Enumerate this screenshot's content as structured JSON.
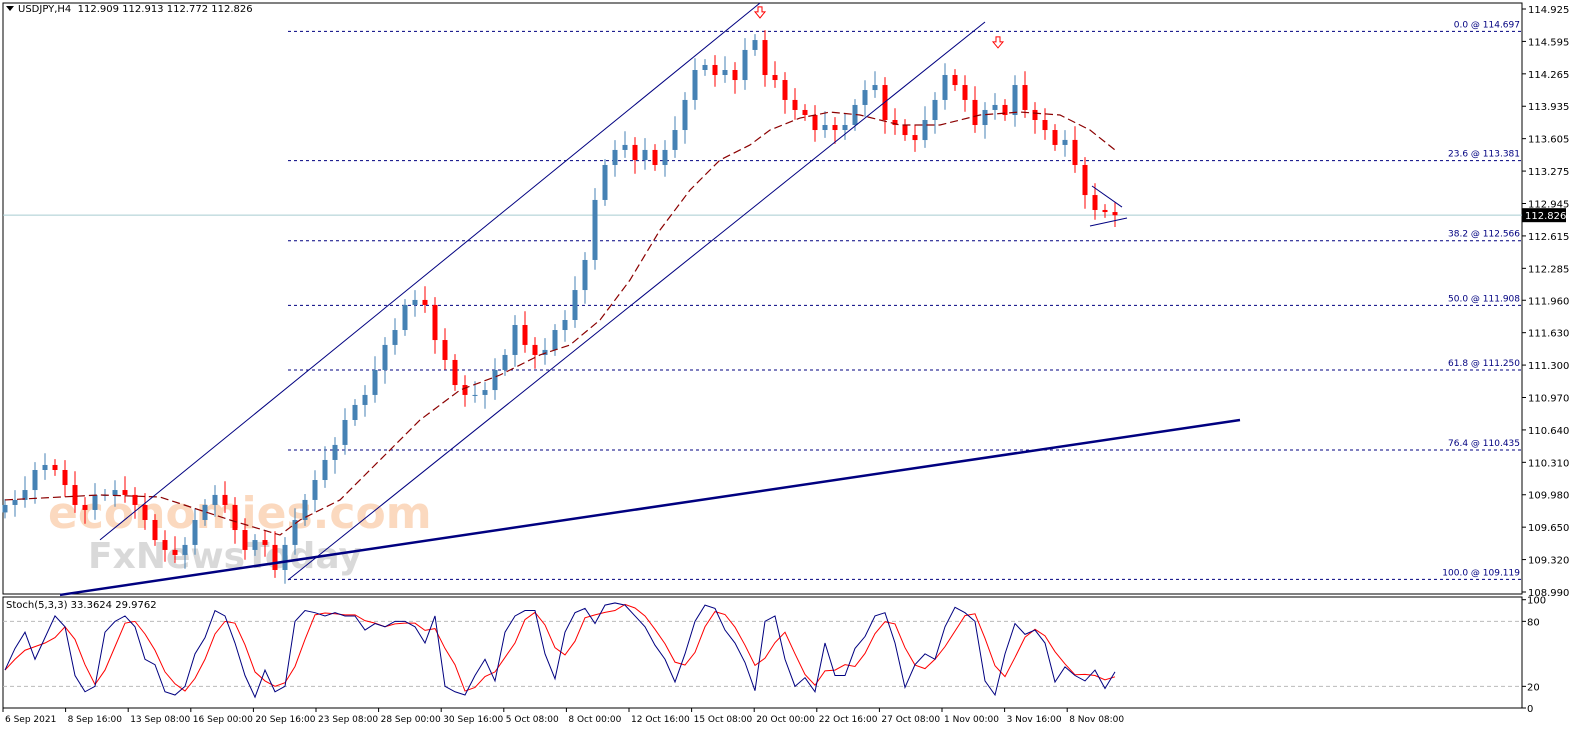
{
  "header": {
    "symbol": "USDJPY,H4",
    "ohlc": "112.909 112.913 112.772 112.826"
  },
  "stoch_header": {
    "name": "Stoch(5,3,3)",
    "k": "33.3624",
    "d": "29.9762"
  },
  "watermark": {
    "line1": "economies.com",
    "line2": "FxNewsToday"
  },
  "colors": {
    "bull": "#4682B4",
    "bear": "#FF0000",
    "ma": "#8B0000",
    "trend": "#000080",
    "fib": "#000080",
    "stoch_k": "#000080",
    "stoch_d": "#FF0000",
    "price_line": "#A8CCD0"
  },
  "chart_data": [
    {
      "type": "candlestick",
      "title": "USDJPY,H4",
      "ylim": [
        108.99,
        114.925
      ],
      "y_ticks": [
        "114.925",
        "114.595",
        "114.265",
        "113.935",
        "113.605",
        "113.275",
        "112.945",
        "112.615",
        "112.285",
        "111.960",
        "111.630",
        "111.300",
        "110.970",
        "110.640",
        "110.310",
        "109.980",
        "109.650",
        "109.320",
        "108.990"
      ],
      "x_ticks": [
        "6 Sep 2021",
        "8 Sep 16:00",
        "13 Sep 08:00",
        "16 Sep 00:00",
        "20 Sep 16:00",
        "23 Sep 08:00",
        "28 Sep 00:00",
        "30 Sep 16:00",
        "5 Oct 08:00",
        "8 Oct 00:00",
        "12 Oct 16:00",
        "15 Oct 08:00",
        "20 Oct 00:00",
        "22 Oct 16:00",
        "27 Oct 08:00",
        "1 Nov 00:00",
        "3 Nov 16:00",
        "8 Nov 08:00"
      ],
      "first_open": 109.8,
      "closes": [
        109.876,
        109.927,
        110.028,
        110.232,
        110.283,
        110.232,
        110.079,
        109.876,
        109.825,
        109.978,
        109.978,
        110.028,
        109.978,
        109.876,
        109.723,
        109.519,
        109.418,
        109.367,
        109.469,
        109.723,
        109.876,
        109.978,
        109.876,
        109.621,
        109.418,
        109.519,
        109.469,
        109.214,
        109.469,
        109.723,
        109.927,
        110.13,
        110.334,
        110.487,
        110.741,
        110.894,
        110.996,
        111.25,
        111.505,
        111.657,
        111.912,
        111.963,
        111.912,
        111.555,
        111.352,
        111.097,
        110.996,
        110.996,
        111.046,
        111.25,
        111.403,
        111.708,
        111.505,
        111.403,
        111.454,
        111.657,
        111.759,
        112.064,
        112.37,
        112.981,
        113.337,
        113.49,
        113.541,
        113.388,
        113.49,
        113.337,
        113.49,
        113.693,
        113.999,
        114.304,
        114.355,
        114.253,
        114.304,
        114.202,
        114.508,
        114.609,
        114.253,
        114.202,
        113.999,
        113.897,
        113.846,
        113.693,
        113.744,
        113.693,
        113.744,
        113.948,
        114.1,
        114.151,
        113.795,
        113.744,
        113.642,
        113.591,
        113.795,
        113.999,
        114.253,
        114.151,
        113.999,
        113.744,
        113.897,
        113.948,
        113.846,
        114.151,
        113.897,
        113.795,
        113.693,
        113.541,
        113.592,
        113.337,
        113.031,
        112.879,
        112.858,
        112.826
      ],
      "current_price": "112.826",
      "moving_average": [
        [
          0,
          109.927
        ],
        [
          9.5,
          109.978
        ],
        [
          15.5,
          109.957
        ],
        [
          22.5,
          109.723
        ],
        [
          27.5,
          109.57
        ],
        [
          29.5,
          109.723
        ],
        [
          33.5,
          109.927
        ],
        [
          37.5,
          110.334
        ],
        [
          41.5,
          110.741
        ],
        [
          45.5,
          111.046
        ],
        [
          49.5,
          111.199
        ],
        [
          53.5,
          111.403
        ],
        [
          56.5,
          111.505
        ],
        [
          59.5,
          111.759
        ],
        [
          62.5,
          112.166
        ],
        [
          65.5,
          112.675
        ],
        [
          68.5,
          113.082
        ],
        [
          71.5,
          113.388
        ],
        [
          74.5,
          113.541
        ],
        [
          76.5,
          113.693
        ],
        [
          79.5,
          113.815
        ],
        [
          82.5,
          113.876
        ],
        [
          85.5,
          113.846
        ],
        [
          87.5,
          113.795
        ],
        [
          89.5,
          113.744
        ],
        [
          93.5,
          113.744
        ],
        [
          97.5,
          113.846
        ],
        [
          101.5,
          113.876
        ],
        [
          105.5,
          113.846
        ],
        [
          108.5,
          113.693
        ],
        [
          111,
          113.49
        ]
      ],
      "fibonacci": [
        {
          "label": "0.0 @ 114.697",
          "price": 114.697
        },
        {
          "label": "23.6 @ 113.381",
          "price": 113.381
        },
        {
          "label": "38.2 @ 112.566",
          "price": 112.566
        },
        {
          "label": "50.0 @ 111.908",
          "price": 111.908
        },
        {
          "label": "61.8 @ 111.250",
          "price": 111.25
        },
        {
          "label": "76.4 @ 110.435",
          "price": 110.435
        },
        {
          "label": "100.0 @ 109.119",
          "price": 109.119
        }
      ],
      "fib_start_bar": 28.3,
      "trendlines": [
        {
          "name": "channel-upper",
          "points": [
            [
              9.5,
              109.521
            ],
            [
              75.5,
              114.986
            ]
          ],
          "thick": false
        },
        {
          "name": "channel-lower",
          "points": [
            [
              28.3,
              109.112
            ],
            [
              98,
              114.793
            ]
          ],
          "thick": false
        },
        {
          "name": "support",
          "points": [
            [
              5.5,
              108.96
            ],
            [
              123.5,
              110.741
            ]
          ],
          "thick": true
        },
        {
          "name": "triangle-upper",
          "points": [
            [
              108.7,
              113.123
            ],
            [
              111.7,
              112.909
            ]
          ],
          "thick": false
        },
        {
          "name": "triangle-lower",
          "points": [
            [
              108.5,
              112.716
            ],
            [
              112.2,
              112.797
            ]
          ],
          "thick": false
        }
      ],
      "arrows": [
        {
          "bar": 75.5,
          "price": 114.885,
          "direction": "down"
        },
        {
          "bar": 99.3,
          "price": 114.58,
          "direction": "down"
        }
      ]
    },
    {
      "type": "line",
      "title": "Stoch(5,3,3)",
      "ylim": [
        0,
        100
      ],
      "y_ticks": [
        "100",
        "80",
        "20",
        "0"
      ],
      "levels": [
        80,
        20
      ],
      "k": [
        35,
        55,
        70,
        45,
        65,
        85,
        75,
        30,
        15,
        20,
        70,
        80,
        85,
        75,
        45,
        40,
        15,
        12,
        20,
        50,
        65,
        90,
        85,
        60,
        30,
        10,
        35,
        15,
        20,
        80,
        90,
        88,
        85,
        88,
        85,
        85,
        72,
        78,
        75,
        80,
        80,
        75,
        60,
        85,
        20,
        15,
        12,
        30,
        45,
        25,
        70,
        85,
        90,
        90,
        50,
        27,
        70,
        88,
        92,
        78,
        95,
        97,
        95,
        85,
        75,
        58,
        45,
        24,
        50,
        80,
        95,
        92,
        72,
        60,
        42,
        16,
        80,
        85,
        45,
        20,
        28,
        15,
        60,
        30,
        30,
        55,
        66,
        85,
        88,
        60,
        19,
        40,
        50,
        45,
        75,
        93,
        88,
        80,
        25,
        12,
        50,
        78,
        68,
        72,
        60,
        24,
        38,
        30,
        25,
        35,
        18,
        33.36
      ]
    }
  ]
}
